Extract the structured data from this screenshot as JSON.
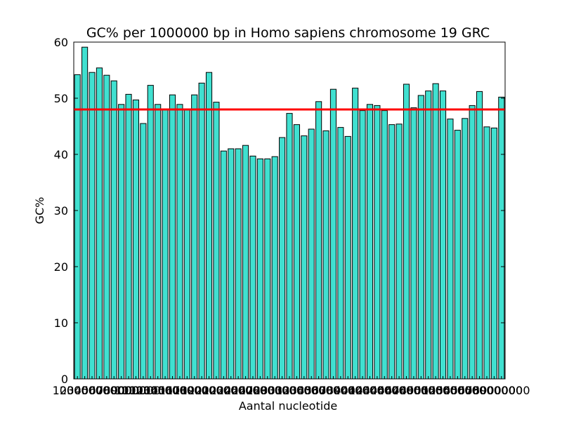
{
  "chart_data": {
    "type": "bar",
    "title": "GC% per 1000000 bp in Homo sapiens chromosome 19 GRC",
    "xlabel": "Aantal nucleotide",
    "ylabel": "GC%",
    "ylim": [
      0,
      60
    ],
    "yticks": [
      0,
      10,
      20,
      30,
      40,
      50,
      60
    ],
    "xtick_labels": [
      "1000000",
      "2000000",
      "3000000",
      "4000000",
      "5000000",
      "6000000",
      "7000000",
      "8000000",
      "9000000",
      "10000000",
      "11000000",
      "12000000",
      "13000000",
      "14000000",
      "15000000",
      "16000000",
      "17000000",
      "18000000",
      "19000000",
      "20000000",
      "21000000",
      "22000000",
      "23000000",
      "24000000",
      "25000000",
      "26000000",
      "27000000",
      "28000000",
      "29000000",
      "30000000",
      "31000000",
      "32000000",
      "33000000",
      "34000000",
      "35000000",
      "36000000",
      "37000000",
      "38000000",
      "39000000",
      "40000000",
      "41000000",
      "42000000",
      "43000000",
      "44000000",
      "45000000",
      "46000000",
      "47000000",
      "48000000",
      "49000000",
      "50000000",
      "51000000",
      "52000000",
      "53000000",
      "54000000",
      "55000000",
      "56000000",
      "57000000",
      "58000000",
      "59000000"
    ],
    "values": [
      54.2,
      59.1,
      54.6,
      55.4,
      54.1,
      53.1,
      48.9,
      50.7,
      49.7,
      45.5,
      52.3,
      48.9,
      47.9,
      50.6,
      48.9,
      47.9,
      50.6,
      52.7,
      54.6,
      49.3,
      40.6,
      41.0,
      41.0,
      41.6,
      39.7,
      39.2,
      39.2,
      39.6,
      43.0,
      47.3,
      45.3,
      43.3,
      44.5,
      49.4,
      44.2,
      51.6,
      44.8,
      43.2,
      51.8,
      47.8,
      48.9,
      48.7,
      47.8,
      45.3,
      45.4,
      52.5,
      48.3,
      50.5,
      51.3,
      52.6,
      51.3,
      46.3,
      44.3,
      46.4,
      48.7,
      51.2,
      44.9,
      44.7,
      50.2
    ],
    "reference_line": 48.0,
    "colors": {
      "bar": "#40e0d0",
      "bar_edge": "#000000",
      "reference_line": "#ff0000"
    },
    "grid": false
  }
}
